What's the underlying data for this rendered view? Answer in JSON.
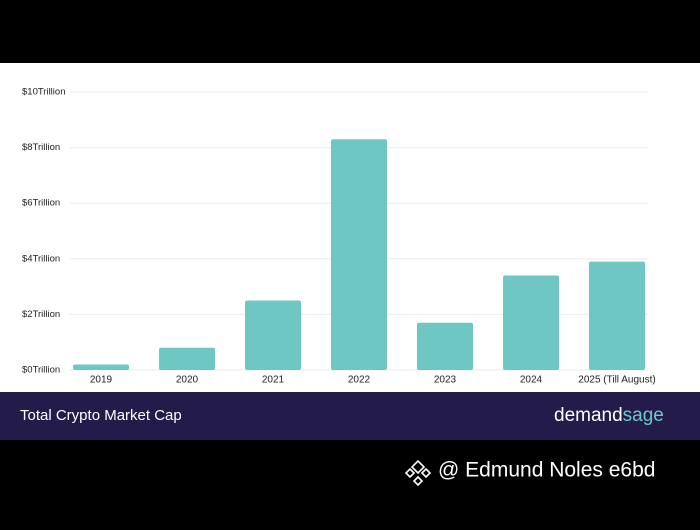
{
  "chart_data": {
    "type": "bar",
    "title": "Total Crypto Market Cap",
    "categories": [
      "2019",
      "2020",
      "2021",
      "2022",
      "2023",
      "2024",
      "2025 (Till August)"
    ],
    "values": [
      0.2,
      0.8,
      2.5,
      8.3,
      1.7,
      3.4,
      3.9
    ],
    "color": "#6fc7c3",
    "ylim": [
      0,
      10
    ],
    "yticks": [
      {
        "value": 0,
        "label": "$0Trillion"
      },
      {
        "value": 2,
        "label": "$2Trillion"
      },
      {
        "value": 4,
        "label": "$4Trillion"
      },
      {
        "value": 6,
        "label": "$6Trillion"
      },
      {
        "value": 8,
        "label": "$8Trillion"
      },
      {
        "value": 10,
        "label": "$10Trillion"
      }
    ],
    "grid": true
  },
  "brand": {
    "first": "demand",
    "second": "sage"
  },
  "watermark": "@ Edmund Noles e6bd"
}
